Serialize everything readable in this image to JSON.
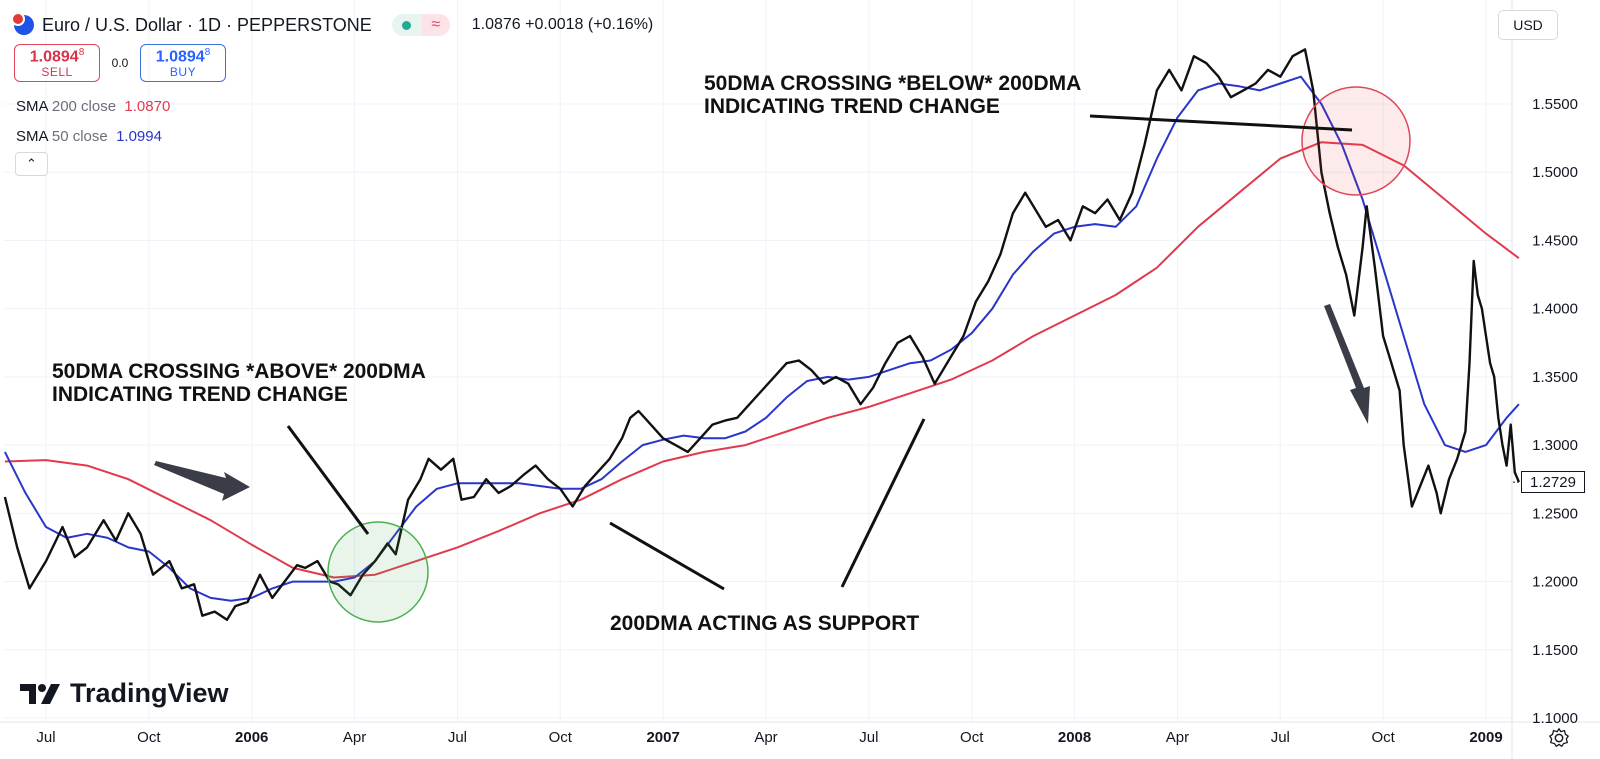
{
  "header": {
    "title": "Euro / U.S. Dollar · 1D · PEPPERSTONE",
    "symbol_icon": "eur-usd-flag-icon",
    "status_icon": "market-open-dot-icon",
    "compare_icon": "approx-wave-icon",
    "last_price": "1.0876",
    "change": "+0.0018 (+0.16%)"
  },
  "trade": {
    "sell_price": "1.0894",
    "sell_sup": "8",
    "sell_label": "SELL",
    "spread": "0.0",
    "buy_price": "1.0894",
    "buy_sup": "8",
    "buy_label": "BUY"
  },
  "indicators": [
    {
      "name": "SMA",
      "params": "200 close",
      "value": "1.0870",
      "color": "#e03a4e"
    },
    {
      "name": "SMA",
      "params": "50 close",
      "value": "1.0994",
      "color": "#2a35c9"
    }
  ],
  "collapse_icon": "chevron-up-icon",
  "currency": "USD",
  "watermark": "TradingView",
  "settings_icon": "gear-icon",
  "chart_data": {
    "type": "line",
    "ylim": [
      1.1,
      1.6
    ],
    "y_ticks": [
      "1.1000",
      "1.1500",
      "1.2000",
      "1.2500",
      "1.3000",
      "1.3500",
      "1.4000",
      "1.4500",
      "1.5000",
      "1.5500"
    ],
    "x_ticks": [
      {
        "label": "Jul",
        "t": 2005.5
      },
      {
        "label": "Oct",
        "t": 2005.75
      },
      {
        "label": "2006",
        "t": 2006.0,
        "bold": true
      },
      {
        "label": "Apr",
        "t": 2006.25
      },
      {
        "label": "Jul",
        "t": 2006.5
      },
      {
        "label": "Oct",
        "t": 2006.75
      },
      {
        "label": "2007",
        "t": 2007.0,
        "bold": true
      },
      {
        "label": "Apr",
        "t": 2007.25
      },
      {
        "label": "Jul",
        "t": 2007.5
      },
      {
        "label": "Oct",
        "t": 2007.75
      },
      {
        "label": "2008",
        "t": 2008.0,
        "bold": true
      },
      {
        "label": "Apr",
        "t": 2008.25
      },
      {
        "label": "Jul",
        "t": 2008.5
      },
      {
        "label": "Oct",
        "t": 2008.75
      },
      {
        "label": "2009",
        "t": 2009.0,
        "bold": true
      }
    ],
    "x_range": [
      2005.4,
      2009.08
    ],
    "grid": true,
    "current_price": "1.2729",
    "current_value": 1.2729,
    "series": [
      {
        "color": "#111111",
        "points": [
          [
            2005.4,
            1.262
          ],
          [
            2005.43,
            1.225
          ],
          [
            2005.46,
            1.195
          ],
          [
            2005.5,
            1.215
          ],
          [
            2005.54,
            1.24
          ],
          [
            2005.57,
            1.218
          ],
          [
            2005.6,
            1.225
          ],
          [
            2005.64,
            1.245
          ],
          [
            2005.67,
            1.23
          ],
          [
            2005.7,
            1.25
          ],
          [
            2005.73,
            1.235
          ],
          [
            2005.76,
            1.205
          ],
          [
            2005.8,
            1.215
          ],
          [
            2005.83,
            1.195
          ],
          [
            2005.86,
            1.198
          ],
          [
            2005.88,
            1.175
          ],
          [
            2005.91,
            1.178
          ],
          [
            2005.94,
            1.172
          ],
          [
            2005.96,
            1.182
          ],
          [
            2005.99,
            1.185
          ],
          [
            2006.02,
            1.205
          ],
          [
            2006.05,
            1.188
          ],
          [
            2006.08,
            1.2
          ],
          [
            2006.11,
            1.212
          ],
          [
            2006.13,
            1.21
          ],
          [
            2006.16,
            1.215
          ],
          [
            2006.19,
            1.2
          ],
          [
            2006.21,
            1.198
          ],
          [
            2006.24,
            1.19
          ],
          [
            2006.27,
            1.205
          ],
          [
            2006.3,
            1.215
          ],
          [
            2006.33,
            1.228
          ],
          [
            2006.35,
            1.22
          ],
          [
            2006.38,
            1.26
          ],
          [
            2006.41,
            1.275
          ],
          [
            2006.43,
            1.29
          ],
          [
            2006.46,
            1.282
          ],
          [
            2006.49,
            1.29
          ],
          [
            2006.51,
            1.26
          ],
          [
            2006.54,
            1.262
          ],
          [
            2006.57,
            1.275
          ],
          [
            2006.6,
            1.265
          ],
          [
            2006.63,
            1.27
          ],
          [
            2006.66,
            1.278
          ],
          [
            2006.69,
            1.285
          ],
          [
            2006.72,
            1.275
          ],
          [
            2006.75,
            1.268
          ],
          [
            2006.78,
            1.255
          ],
          [
            2006.81,
            1.27
          ],
          [
            2006.84,
            1.28
          ],
          [
            2006.87,
            1.29
          ],
          [
            2006.9,
            1.305
          ],
          [
            2006.92,
            1.32
          ],
          [
            2006.94,
            1.325
          ],
          [
            2006.97,
            1.315
          ],
          [
            2007.0,
            1.305
          ],
          [
            2007.03,
            1.3
          ],
          [
            2007.06,
            1.295
          ],
          [
            2007.09,
            1.305
          ],
          [
            2007.12,
            1.315
          ],
          [
            2007.15,
            1.318
          ],
          [
            2007.18,
            1.32
          ],
          [
            2007.21,
            1.33
          ],
          [
            2007.24,
            1.34
          ],
          [
            2007.27,
            1.35
          ],
          [
            2007.3,
            1.36
          ],
          [
            2007.33,
            1.362
          ],
          [
            2007.36,
            1.355
          ],
          [
            2007.39,
            1.345
          ],
          [
            2007.42,
            1.35
          ],
          [
            2007.45,
            1.345
          ],
          [
            2007.48,
            1.33
          ],
          [
            2007.51,
            1.342
          ],
          [
            2007.54,
            1.36
          ],
          [
            2007.57,
            1.375
          ],
          [
            2007.6,
            1.38
          ],
          [
            2007.63,
            1.365
          ],
          [
            2007.66,
            1.345
          ],
          [
            2007.68,
            1.355
          ],
          [
            2007.7,
            1.365
          ],
          [
            2007.73,
            1.38
          ],
          [
            2007.76,
            1.405
          ],
          [
            2007.79,
            1.42
          ],
          [
            2007.82,
            1.44
          ],
          [
            2007.85,
            1.47
          ],
          [
            2007.88,
            1.485
          ],
          [
            2007.9,
            1.475
          ],
          [
            2007.93,
            1.46
          ],
          [
            2007.96,
            1.465
          ],
          [
            2007.99,
            1.45
          ],
          [
            2008.02,
            1.475
          ],
          [
            2008.05,
            1.47
          ],
          [
            2008.08,
            1.48
          ],
          [
            2008.11,
            1.465
          ],
          [
            2008.14,
            1.485
          ],
          [
            2008.17,
            1.52
          ],
          [
            2008.2,
            1.56
          ],
          [
            2008.23,
            1.575
          ],
          [
            2008.26,
            1.56
          ],
          [
            2008.29,
            1.585
          ],
          [
            2008.32,
            1.58
          ],
          [
            2008.35,
            1.57
          ],
          [
            2008.38,
            1.555
          ],
          [
            2008.41,
            1.56
          ],
          [
            2008.44,
            1.565
          ],
          [
            2008.47,
            1.575
          ],
          [
            2008.5,
            1.57
          ],
          [
            2008.53,
            1.585
          ],
          [
            2008.56,
            1.59
          ],
          [
            2008.58,
            1.56
          ],
          [
            2008.6,
            1.5
          ],
          [
            2008.62,
            1.47
          ],
          [
            2008.64,
            1.445
          ],
          [
            2008.66,
            1.425
          ],
          [
            2008.68,
            1.395
          ],
          [
            2008.7,
            1.445
          ],
          [
            2008.71,
            1.475
          ],
          [
            2008.73,
            1.43
          ],
          [
            2008.75,
            1.38
          ],
          [
            2008.77,
            1.36
          ],
          [
            2008.79,
            1.34
          ],
          [
            2008.8,
            1.3
          ],
          [
            2008.82,
            1.255
          ],
          [
            2008.84,
            1.27
          ],
          [
            2008.86,
            1.285
          ],
          [
            2008.88,
            1.265
          ],
          [
            2008.89,
            1.25
          ],
          [
            2008.91,
            1.275
          ],
          [
            2008.93,
            1.29
          ],
          [
            2008.95,
            1.31
          ],
          [
            2008.96,
            1.36
          ],
          [
            2008.97,
            1.435
          ],
          [
            2008.98,
            1.41
          ],
          [
            2008.99,
            1.4
          ],
          [
            2009.0,
            1.38
          ],
          [
            2009.01,
            1.36
          ],
          [
            2009.02,
            1.35
          ],
          [
            2009.03,
            1.32
          ],
          [
            2009.04,
            1.3
          ],
          [
            2009.05,
            1.285
          ],
          [
            2009.06,
            1.315
          ],
          [
            2009.07,
            1.28
          ],
          [
            2009.08,
            1.273
          ]
        ]
      },
      {
        "color": "#2a35c9",
        "points": [
          [
            2005.4,
            1.295
          ],
          [
            2005.45,
            1.265
          ],
          [
            2005.5,
            1.24
          ],
          [
            2005.55,
            1.232
          ],
          [
            2005.6,
            1.235
          ],
          [
            2005.65,
            1.232
          ],
          [
            2005.7,
            1.225
          ],
          [
            2005.75,
            1.222
          ],
          [
            2005.8,
            1.21
          ],
          [
            2005.85,
            1.195
          ],
          [
            2005.9,
            1.188
          ],
          [
            2005.95,
            1.186
          ],
          [
            2006.0,
            1.188
          ],
          [
            2006.05,
            1.195
          ],
          [
            2006.1,
            1.2
          ],
          [
            2006.15,
            1.2
          ],
          [
            2006.2,
            1.2
          ],
          [
            2006.25,
            1.203
          ],
          [
            2006.3,
            1.215
          ],
          [
            2006.35,
            1.235
          ],
          [
            2006.4,
            1.255
          ],
          [
            2006.45,
            1.268
          ],
          [
            2006.5,
            1.272
          ],
          [
            2006.55,
            1.272
          ],
          [
            2006.6,
            1.272
          ],
          [
            2006.65,
            1.272
          ],
          [
            2006.7,
            1.27
          ],
          [
            2006.75,
            1.268
          ],
          [
            2006.8,
            1.268
          ],
          [
            2006.85,
            1.275
          ],
          [
            2006.9,
            1.288
          ],
          [
            2006.95,
            1.3
          ],
          [
            2007.0,
            1.304
          ],
          [
            2007.05,
            1.307
          ],
          [
            2007.1,
            1.305
          ],
          [
            2007.15,
            1.305
          ],
          [
            2007.2,
            1.31
          ],
          [
            2007.25,
            1.32
          ],
          [
            2007.3,
            1.335
          ],
          [
            2007.35,
            1.347
          ],
          [
            2007.4,
            1.35
          ],
          [
            2007.45,
            1.348
          ],
          [
            2007.5,
            1.35
          ],
          [
            2007.55,
            1.355
          ],
          [
            2007.6,
            1.36
          ],
          [
            2007.65,
            1.362
          ],
          [
            2007.7,
            1.37
          ],
          [
            2007.75,
            1.382
          ],
          [
            2007.8,
            1.4
          ],
          [
            2007.85,
            1.425
          ],
          [
            2007.9,
            1.442
          ],
          [
            2007.95,
            1.455
          ],
          [
            2008.0,
            1.46
          ],
          [
            2008.05,
            1.462
          ],
          [
            2008.1,
            1.46
          ],
          [
            2008.15,
            1.475
          ],
          [
            2008.2,
            1.51
          ],
          [
            2008.25,
            1.54
          ],
          [
            2008.3,
            1.56
          ],
          [
            2008.35,
            1.565
          ],
          [
            2008.4,
            1.563
          ],
          [
            2008.45,
            1.56
          ],
          [
            2008.5,
            1.565
          ],
          [
            2008.55,
            1.57
          ],
          [
            2008.6,
            1.55
          ],
          [
            2008.65,
            1.52
          ],
          [
            2008.7,
            1.48
          ],
          [
            2008.75,
            1.43
          ],
          [
            2008.8,
            1.38
          ],
          [
            2008.85,
            1.33
          ],
          [
            2008.9,
            1.3
          ],
          [
            2008.95,
            1.295
          ],
          [
            2009.0,
            1.3
          ],
          [
            2009.05,
            1.32
          ],
          [
            2009.08,
            1.33
          ]
        ]
      },
      {
        "color": "#e03a4e",
        "points": [
          [
            2005.4,
            1.288
          ],
          [
            2005.5,
            1.289
          ],
          [
            2005.6,
            1.285
          ],
          [
            2005.7,
            1.275
          ],
          [
            2005.8,
            1.26
          ],
          [
            2005.9,
            1.245
          ],
          [
            2006.0,
            1.227
          ],
          [
            2006.1,
            1.21
          ],
          [
            2006.2,
            1.203
          ],
          [
            2006.3,
            1.205
          ],
          [
            2006.4,
            1.215
          ],
          [
            2006.5,
            1.225
          ],
          [
            2006.6,
            1.237
          ],
          [
            2006.7,
            1.25
          ],
          [
            2006.8,
            1.26
          ],
          [
            2006.9,
            1.275
          ],
          [
            2007.0,
            1.288
          ],
          [
            2007.1,
            1.295
          ],
          [
            2007.2,
            1.3
          ],
          [
            2007.3,
            1.31
          ],
          [
            2007.4,
            1.32
          ],
          [
            2007.5,
            1.328
          ],
          [
            2007.6,
            1.338
          ],
          [
            2007.7,
            1.348
          ],
          [
            2007.8,
            1.362
          ],
          [
            2007.9,
            1.38
          ],
          [
            2008.0,
            1.395
          ],
          [
            2008.1,
            1.41
          ],
          [
            2008.2,
            1.43
          ],
          [
            2008.3,
            1.46
          ],
          [
            2008.4,
            1.485
          ],
          [
            2008.5,
            1.51
          ],
          [
            2008.6,
            1.522
          ],
          [
            2008.7,
            1.52
          ],
          [
            2008.8,
            1.505
          ],
          [
            2008.9,
            1.48
          ],
          [
            2009.0,
            1.455
          ],
          [
            2009.08,
            1.437
          ]
        ]
      }
    ],
    "annotations": [
      {
        "text": "50DMA CROSSING *BELOW* 200DMA\nINDICATING TREND CHANGE"
      },
      {
        "text": "50DMA CROSSING *ABOVE* 200DMA\nINDICATING TREND CHANGE"
      },
      {
        "text": "200DMA ACTING AS SUPPORT"
      }
    ]
  }
}
